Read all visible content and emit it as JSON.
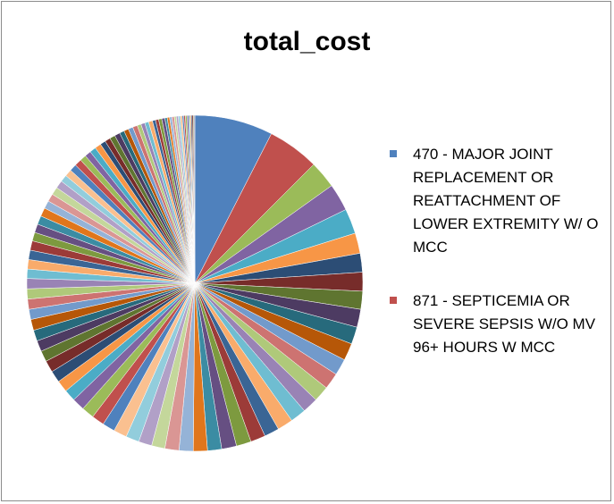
{
  "chart_data": {
    "type": "pie",
    "title": "total_cost",
    "legend": "right",
    "legend_entries": [
      {
        "label": "470 - MAJOR JOINT REPLACEMENT OR REATTACHMENT OF LOWER EXTREMITY W/ O MCC",
        "color": "#4f81bd"
      },
      {
        "label": "871 - SEPTICEMIA OR SEVERE SEPSIS W/O MV 96+ HOURS W MCC",
        "color": "#c0504d"
      }
    ],
    "values": [
      10,
      6.6,
      3.5,
      3.5,
      3.2,
      2.6,
      2.4,
      2.4,
      2.3,
      2.3,
      2.2,
      2.2,
      2.1,
      2.1,
      2.0,
      2.0,
      2.0,
      2.0,
      1.9,
      1.9,
      1.9,
      1.9,
      1.8,
      1.8,
      1.8,
      1.8,
      1.7,
      1.7,
      1.7,
      1.7,
      1.6,
      1.6,
      1.6,
      1.6,
      1.5,
      1.5,
      1.5,
      1.5,
      1.4,
      1.4,
      1.4,
      1.4,
      1.3,
      1.3,
      1.3,
      1.3,
      1.2,
      1.2,
      1.2,
      1.2,
      1.1,
      1.1,
      1.1,
      1.1,
      1.0,
      1.0,
      1.0,
      1.0,
      0.9,
      0.9,
      0.9,
      0.9,
      0.8,
      0.8,
      0.8,
      0.8,
      0.7,
      0.7,
      0.7,
      0.7,
      0.6,
      0.6,
      0.6,
      0.6,
      0.5,
      0.5,
      0.5,
      0.5,
      0.4,
      0.4,
      0.4,
      0.4,
      0.3,
      0.3,
      0.3,
      0.3,
      0.25,
      0.25,
      0.25,
      0.25,
      0.2,
      0.2,
      0.2,
      0.2,
      0.15,
      0.15,
      0.15,
      0.15,
      0.1,
      0.1
    ],
    "palette": [
      "#4f81bd",
      "#c0504d",
      "#9bbb59",
      "#8064a2",
      "#4bacc6",
      "#f79646",
      "#2c4d75",
      "#772c2a",
      "#5f7530",
      "#4d3b62",
      "#276a7c",
      "#b65708",
      "#729acb",
      "#cd7371",
      "#afc97a",
      "#9983b5",
      "#6fbdd1",
      "#f9ab6b",
      "#3a6595",
      "#9c3b38",
      "#7d9a3f",
      "#664f82",
      "#3b8ca3",
      "#e0761c",
      "#95b3d7",
      "#da9694",
      "#c4d79b",
      "#b1a0c7",
      "#92cddc",
      "#fac090"
    ]
  }
}
